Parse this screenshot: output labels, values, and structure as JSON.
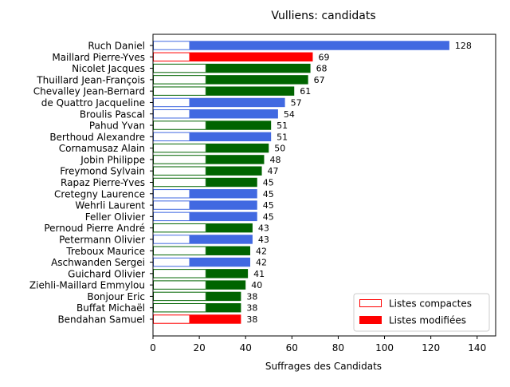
{
  "chart_data": {
    "type": "bar",
    "orientation": "horizontal",
    "title": "Vulliens: candidats",
    "xlabel": "Suffrages des Candidats",
    "ylabel": "",
    "xlim": [
      0,
      148
    ],
    "xticks": [
      0,
      20,
      40,
      60,
      80,
      100,
      120,
      140
    ],
    "grid": false,
    "legend": {
      "placement": "bottom-right",
      "entries": [
        {
          "label": "Listes compactes",
          "style": "outline",
          "color": "#ff0000"
        },
        {
          "label": "Listes modifiées",
          "style": "filled",
          "color": "#ff0000"
        }
      ]
    },
    "list_colors": {
      "blue": "#4169e1",
      "green": "#006400",
      "red": "#ff0000"
    },
    "candidates": [
      {
        "name": "Ruch Daniel",
        "total": 128,
        "compact": 16,
        "color": "blue"
      },
      {
        "name": "Maillard Pierre-Yves",
        "total": 69,
        "compact": 16,
        "color": "red"
      },
      {
        "name": "Nicolet Jacques",
        "total": 68,
        "compact": 23,
        "color": "green"
      },
      {
        "name": "Thuillard Jean-François",
        "total": 67,
        "compact": 23,
        "color": "green"
      },
      {
        "name": "Chevalley Jean-Bernard",
        "total": 61,
        "compact": 23,
        "color": "green"
      },
      {
        "name": "de Quattro Jacqueline",
        "total": 57,
        "compact": 16,
        "color": "blue"
      },
      {
        "name": "Broulis Pascal",
        "total": 54,
        "compact": 16,
        "color": "blue"
      },
      {
        "name": "Pahud Yvan",
        "total": 51,
        "compact": 23,
        "color": "green"
      },
      {
        "name": "Berthoud Alexandre",
        "total": 51,
        "compact": 16,
        "color": "blue"
      },
      {
        "name": "Cornamusaz Alain",
        "total": 50,
        "compact": 23,
        "color": "green"
      },
      {
        "name": "Jobin Philippe",
        "total": 48,
        "compact": 23,
        "color": "green"
      },
      {
        "name": "Freymond Sylvain",
        "total": 47,
        "compact": 23,
        "color": "green"
      },
      {
        "name": "Rapaz Pierre-Yves",
        "total": 45,
        "compact": 23,
        "color": "green"
      },
      {
        "name": "Cretegny Laurence",
        "total": 45,
        "compact": 16,
        "color": "blue"
      },
      {
        "name": "Wehrli Laurent",
        "total": 45,
        "compact": 16,
        "color": "blue"
      },
      {
        "name": "Feller Olivier",
        "total": 45,
        "compact": 16,
        "color": "blue"
      },
      {
        "name": "Pernoud Pierre André",
        "total": 43,
        "compact": 23,
        "color": "green"
      },
      {
        "name": "Petermann Olivier",
        "total": 43,
        "compact": 16,
        "color": "blue"
      },
      {
        "name": "Treboux Maurice",
        "total": 42,
        "compact": 23,
        "color": "green"
      },
      {
        "name": "Aschwanden Sergei",
        "total": 42,
        "compact": 16,
        "color": "blue"
      },
      {
        "name": "Guichard Olivier",
        "total": 41,
        "compact": 23,
        "color": "green"
      },
      {
        "name": "Ziehli-Maillard Emmylou",
        "total": 40,
        "compact": 23,
        "color": "green"
      },
      {
        "name": "Bonjour Eric",
        "total": 38,
        "compact": 23,
        "color": "green"
      },
      {
        "name": "Buffat Michaël",
        "total": 38,
        "compact": 23,
        "color": "green"
      },
      {
        "name": "Bendahan Samuel",
        "total": 38,
        "compact": 16,
        "color": "red"
      }
    ]
  }
}
